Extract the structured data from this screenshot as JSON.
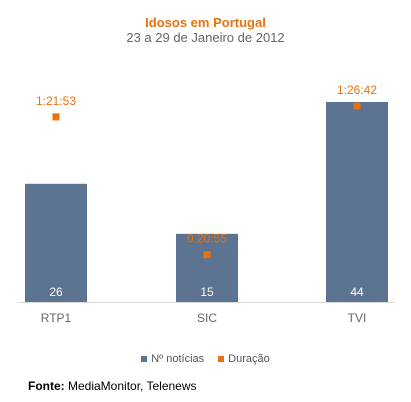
{
  "chart_data": {
    "type": "bar",
    "title": "Idosos em Portugal",
    "subtitle": "23 a 29 de Janeiro de 2012",
    "categories": [
      "RTP1",
      "SIC",
      "TVI"
    ],
    "series": [
      {
        "name": "Nº notícias",
        "kind": "bar",
        "color": "#5c7391",
        "values": [
          26,
          15,
          44
        ],
        "labels": [
          "26",
          "15",
          "44"
        ]
      },
      {
        "name": "Duração",
        "kind": "marker",
        "color": "#e8720c",
        "values_seconds": [
          4913,
          1255,
          5202
        ],
        "labels": [
          "1:21:53",
          "0:20:55",
          "1:26:42"
        ]
      }
    ],
    "legend_position": "bottom",
    "grid": false
  },
  "source": {
    "label": "Fonte:",
    "text": "MediaMonitor, Telenews"
  }
}
